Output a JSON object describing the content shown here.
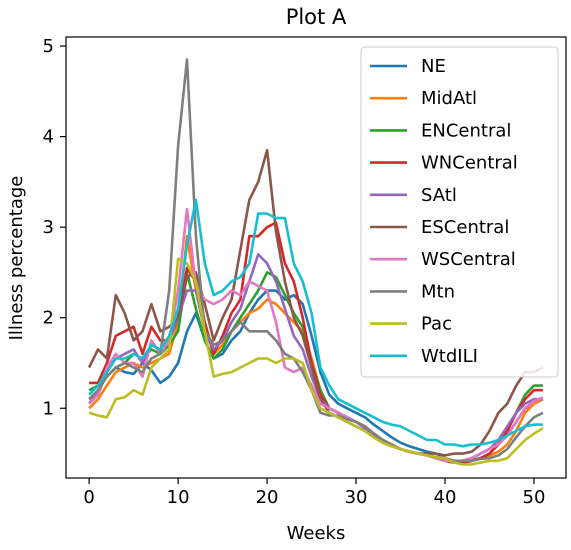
{
  "chart_data": {
    "type": "line",
    "title": "Plot A",
    "xlabel": "Weeks",
    "ylabel": "Illness percentage",
    "xlim": [
      -2.6,
      53.6
    ],
    "ylim": [
      0.23,
      5.1
    ],
    "xticks": [
      0,
      10,
      20,
      30,
      40,
      50
    ],
    "yticks": [
      1,
      2,
      3,
      4,
      5
    ],
    "grid": false,
    "legend_position": "top-right",
    "x": [
      0,
      1,
      2,
      3,
      4,
      5,
      6,
      7,
      8,
      9,
      10,
      11,
      12,
      13,
      14,
      15,
      16,
      17,
      18,
      19,
      20,
      21,
      22,
      23,
      24,
      25,
      26,
      27,
      28,
      29,
      30,
      31,
      32,
      33,
      34,
      35,
      36,
      37,
      38,
      39,
      40,
      41,
      42,
      43,
      44,
      45,
      46,
      47,
      48,
      49,
      50,
      51
    ],
    "series": [
      {
        "name": "NE",
        "color": "#1f77b4",
        "values": [
          1.05,
          1.2,
          1.35,
          1.45,
          1.4,
          1.38,
          1.5,
          1.42,
          1.28,
          1.35,
          1.5,
          1.85,
          2.05,
          1.75,
          1.55,
          1.6,
          1.75,
          1.85,
          2.05,
          2.2,
          2.3,
          2.3,
          2.2,
          2.25,
          2.15,
          1.8,
          1.4,
          1.15,
          1.05,
          1.0,
          0.95,
          0.9,
          0.82,
          0.75,
          0.68,
          0.62,
          0.58,
          0.55,
          0.52,
          0.5,
          0.45,
          0.42,
          0.42,
          0.45,
          0.5,
          0.55,
          0.6,
          0.7,
          0.85,
          1.0,
          1.05,
          1.1
        ]
      },
      {
        "name": "MidAtl",
        "color": "#ff7f0e",
        "values": [
          1.0,
          1.1,
          1.25,
          1.4,
          1.45,
          1.5,
          1.45,
          1.5,
          1.55,
          1.6,
          1.95,
          2.9,
          2.3,
          1.9,
          1.6,
          1.7,
          1.85,
          1.95,
          2.05,
          2.1,
          2.2,
          2.15,
          2.05,
          1.95,
          1.85,
          1.55,
          1.2,
          1.0,
          0.95,
          0.9,
          0.85,
          0.8,
          0.72,
          0.65,
          0.6,
          0.55,
          0.52,
          0.5,
          0.48,
          0.46,
          0.45,
          0.42,
          0.42,
          0.43,
          0.45,
          0.48,
          0.52,
          0.6,
          0.75,
          0.95,
          1.05,
          1.1
        ]
      },
      {
        "name": "ENCentral",
        "color": "#2ca02c",
        "values": [
          1.2,
          1.25,
          1.35,
          1.45,
          1.5,
          1.6,
          1.55,
          1.65,
          1.6,
          1.7,
          1.85,
          2.5,
          2.1,
          1.75,
          1.55,
          1.65,
          1.85,
          2.0,
          2.15,
          2.3,
          2.5,
          2.45,
          2.25,
          2.05,
          1.9,
          1.5,
          1.2,
          1.0,
          0.95,
          0.9,
          0.85,
          0.8,
          0.72,
          0.65,
          0.6,
          0.55,
          0.52,
          0.5,
          0.48,
          0.45,
          0.42,
          0.4,
          0.4,
          0.42,
          0.45,
          0.5,
          0.6,
          0.75,
          0.95,
          1.15,
          1.25,
          1.25
        ]
      },
      {
        "name": "WNCentral",
        "color": "#d62728",
        "values": [
          1.28,
          1.28,
          1.5,
          1.8,
          1.85,
          1.9,
          1.6,
          1.9,
          1.75,
          1.75,
          2.0,
          2.55,
          2.4,
          1.95,
          1.6,
          1.8,
          2.05,
          2.2,
          2.9,
          2.9,
          3.0,
          3.05,
          2.6,
          2.4,
          2.0,
          1.5,
          1.15,
          1.0,
          0.95,
          0.9,
          0.85,
          0.8,
          0.72,
          0.65,
          0.6,
          0.55,
          0.52,
          0.5,
          0.48,
          0.45,
          0.42,
          0.4,
          0.4,
          0.42,
          0.45,
          0.5,
          0.6,
          0.75,
          0.95,
          1.1,
          1.2,
          1.2
        ]
      },
      {
        "name": "SAtl",
        "color": "#9467bd",
        "values": [
          1.1,
          1.15,
          1.4,
          1.55,
          1.6,
          1.65,
          1.5,
          1.7,
          1.65,
          1.75,
          2.0,
          2.3,
          2.3,
          1.85,
          1.65,
          1.75,
          1.95,
          2.1,
          2.4,
          2.7,
          2.6,
          2.4,
          2.1,
          1.8,
          1.65,
          1.35,
          1.1,
          1.0,
          0.95,
          0.9,
          0.85,
          0.78,
          0.7,
          0.63,
          0.58,
          0.55,
          0.52,
          0.5,
          0.48,
          0.45,
          0.42,
          0.42,
          0.42,
          0.45,
          0.5,
          0.55,
          0.65,
          0.8,
          0.95,
          1.05,
          1.1,
          1.1
        ]
      },
      {
        "name": "ESCentral",
        "color": "#8c564b",
        "values": [
          1.45,
          1.65,
          1.55,
          2.25,
          2.05,
          1.75,
          1.85,
          2.15,
          1.85,
          1.9,
          2.0,
          2.45,
          2.5,
          2.15,
          1.75,
          2.0,
          2.2,
          2.75,
          3.3,
          3.5,
          3.85,
          2.95,
          2.4,
          2.0,
          1.8,
          1.45,
          1.1,
          0.95,
          0.9,
          0.85,
          0.8,
          0.75,
          0.68,
          0.62,
          0.58,
          0.55,
          0.52,
          0.5,
          0.5,
          0.5,
          0.48,
          0.5,
          0.5,
          0.52,
          0.6,
          0.75,
          0.95,
          1.05,
          1.25,
          1.4,
          1.4,
          1.45
        ]
      },
      {
        "name": "WSCentral",
        "color": "#e377c2",
        "values": [
          1.05,
          1.15,
          1.45,
          1.6,
          1.5,
          1.5,
          1.35,
          1.75,
          1.6,
          1.75,
          2.3,
          3.2,
          2.35,
          2.2,
          2.15,
          2.2,
          2.3,
          2.25,
          2.4,
          2.35,
          2.3,
          1.95,
          1.45,
          1.4,
          1.45,
          1.25,
          1.05,
          1.0,
          0.95,
          0.9,
          0.85,
          0.8,
          0.72,
          0.65,
          0.58,
          0.55,
          0.52,
          0.5,
          0.48,
          0.45,
          0.42,
          0.42,
          0.42,
          0.45,
          0.5,
          0.55,
          0.6,
          0.7,
          0.85,
          1.0,
          1.08,
          1.12
        ]
      },
      {
        "name": "Mtn",
        "color": "#7f7f7f",
        "values": [
          1.1,
          1.2,
          1.35,
          1.45,
          1.5,
          1.45,
          1.4,
          1.55,
          1.6,
          2.3,
          3.9,
          4.85,
          2.9,
          1.85,
          1.7,
          1.75,
          1.85,
          1.95,
          1.85,
          1.85,
          1.85,
          1.75,
          1.6,
          1.55,
          1.4,
          1.2,
          0.95,
          0.92,
          0.92,
          0.88,
          0.85,
          0.8,
          0.72,
          0.65,
          0.6,
          0.55,
          0.52,
          0.5,
          0.48,
          0.46,
          0.45,
          0.42,
          0.42,
          0.42,
          0.44,
          0.45,
          0.48,
          0.55,
          0.68,
          0.8,
          0.9,
          0.95
        ]
      },
      {
        "name": "Pac",
        "color": "#bcbd22",
        "values": [
          0.95,
          0.92,
          0.9,
          1.1,
          1.12,
          1.2,
          1.15,
          1.45,
          1.55,
          1.65,
          2.65,
          2.6,
          2.4,
          1.85,
          1.35,
          1.38,
          1.4,
          1.45,
          1.5,
          1.55,
          1.55,
          1.5,
          1.55,
          1.55,
          1.5,
          1.2,
          1.0,
          0.95,
          0.9,
          0.85,
          0.8,
          0.75,
          0.68,
          0.62,
          0.58,
          0.55,
          0.52,
          0.5,
          0.48,
          0.46,
          0.45,
          0.4,
          0.38,
          0.38,
          0.4,
          0.42,
          0.42,
          0.45,
          0.55,
          0.65,
          0.72,
          0.78
        ]
      },
      {
        "name": "WtdILI",
        "color": "#17becf",
        "values": [
          1.15,
          1.25,
          1.4,
          1.55,
          1.55,
          1.6,
          1.55,
          1.7,
          1.65,
          1.8,
          2.1,
          2.8,
          3.3,
          2.6,
          2.25,
          2.3,
          2.4,
          2.45,
          2.6,
          3.15,
          3.15,
          3.1,
          3.1,
          2.6,
          2.4,
          2.05,
          1.45,
          1.25,
          1.1,
          1.05,
          1.0,
          0.95,
          0.9,
          0.85,
          0.82,
          0.8,
          0.75,
          0.7,
          0.65,
          0.65,
          0.6,
          0.6,
          0.58,
          0.6,
          0.6,
          0.62,
          0.65,
          0.7,
          0.75,
          0.8,
          0.82,
          0.82
        ]
      }
    ]
  }
}
